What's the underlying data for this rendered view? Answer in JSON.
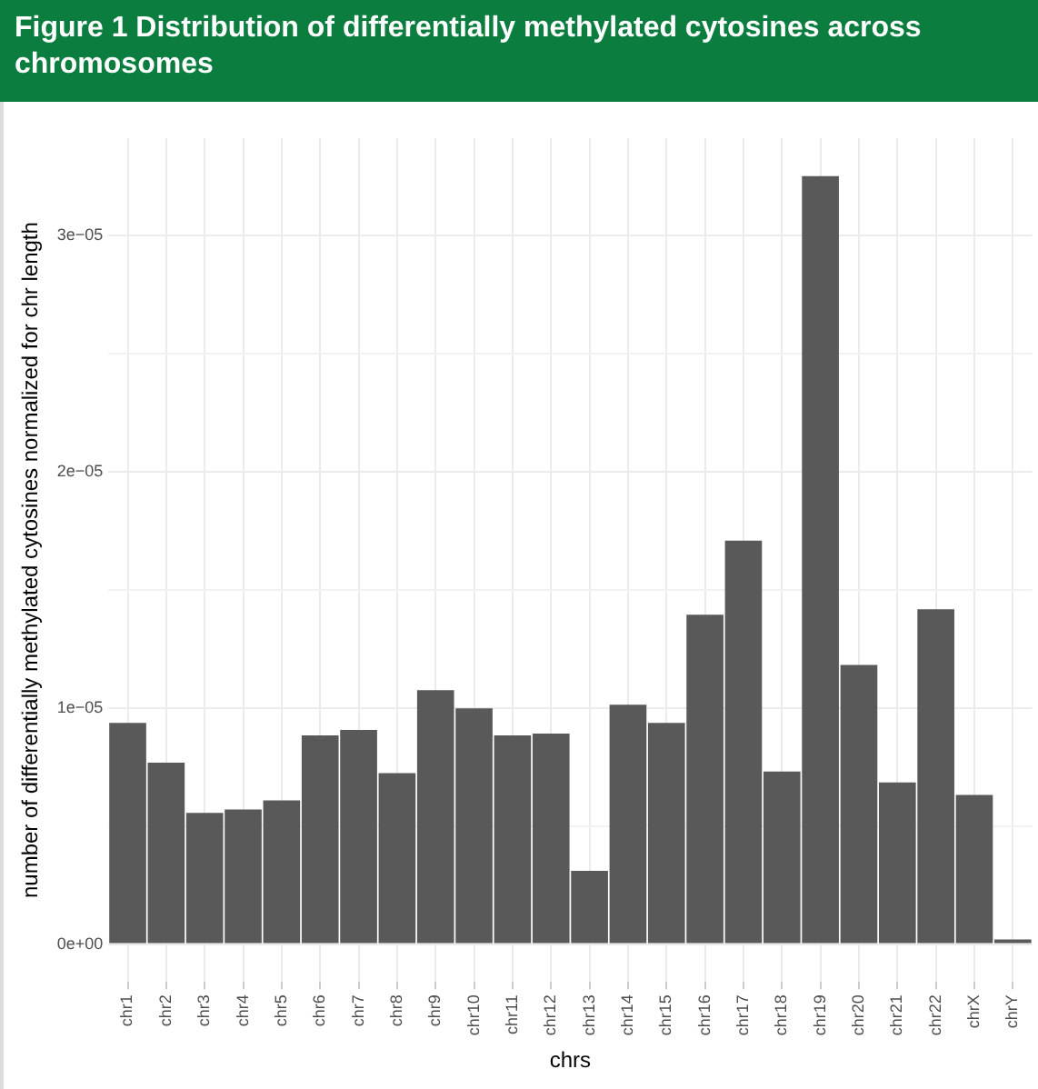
{
  "chart_data": {
    "type": "bar",
    "title": "Figure 1 Distribution of differentially methylated cytosines across chromosomes",
    "xlabel": "chrs",
    "ylabel": "number of differentially methylated cytosines normalized for chr length",
    "categories": [
      "chr1",
      "chr2",
      "chr3",
      "chr4",
      "chr5",
      "chr6",
      "chr7",
      "chr8",
      "chr9",
      "chr10",
      "chr11",
      "chr12",
      "chr13",
      "chr14",
      "chr15",
      "chr16",
      "chr17",
      "chr18",
      "chr19",
      "chr20",
      "chr21",
      "chr22",
      "chrX",
      "chrY"
    ],
    "values": [
      9.36e-06,
      7.68e-06,
      5.55e-06,
      5.7e-06,
      6.08e-06,
      8.83e-06,
      9.06e-06,
      7.23e-06,
      1.074e-05,
      9.97e-06,
      8.83e-06,
      8.91e-06,
      3.1e-06,
      1.013e-05,
      9.36e-06,
      1.394e-05,
      1.707e-05,
      7.3e-06,
      3.249e-05,
      1.181e-05,
      6.84e-06,
      1.417e-05,
      6.31e-06,
      2e-07
    ],
    "color": "#595959",
    "ylim": [
      -1.6e-06,
      3.41e-05
    ],
    "yticks": [
      {
        "value": 0,
        "label": "0e+00"
      },
      {
        "value": 5e-06,
        "label": null
      },
      {
        "value": 1e-05,
        "label": "1e−05"
      },
      {
        "value": 1.5e-05,
        "label": null
      },
      {
        "value": 2e-05,
        "label": "2e−05"
      },
      {
        "value": 2.5e-05,
        "label": null
      },
      {
        "value": 3e-05,
        "label": "3e−05"
      }
    ],
    "grid": true
  }
}
